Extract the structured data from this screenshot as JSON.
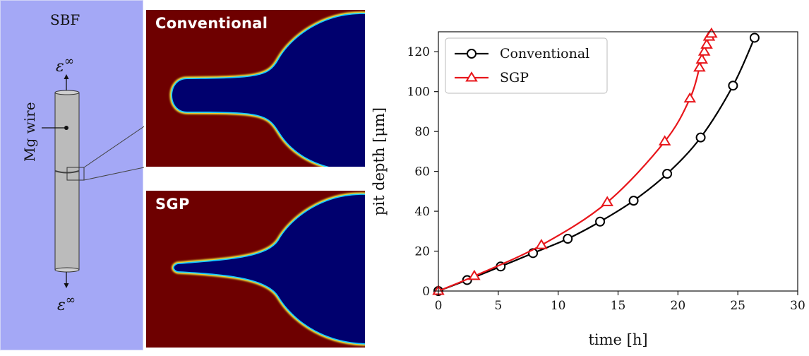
{
  "schematic": {
    "top_label": "SBF",
    "wire_label": "Mg wire",
    "far_field_top": "ε",
    "far_field_top_sup": "∞",
    "far_field_bottom": "ε",
    "far_field_bottom_sup": "∞"
  },
  "simulations": [
    {
      "label": "Conventional"
    },
    {
      "label": "SGP"
    }
  ],
  "colors": {
    "schematic_background": "#a4a8f6",
    "electrolyte": "#6e0000",
    "pit": "#00006e",
    "conventional": "#000000",
    "sgp": "#e8161b"
  },
  "chart_data": {
    "type": "line",
    "xlabel": "time [h]",
    "ylabel": "pit depth [μm]",
    "xlim": [
      0,
      30
    ],
    "ylim": [
      0,
      130
    ],
    "xticks": [
      0,
      5,
      10,
      15,
      20,
      25,
      30
    ],
    "yticks": [
      0,
      20,
      40,
      60,
      80,
      100,
      120
    ],
    "grid": false,
    "legend_position": "top-left",
    "series": [
      {
        "name": "Conventional",
        "color": "#000000",
        "marker": "circle",
        "x": [
          0.0,
          2.4,
          5.2,
          7.9,
          10.8,
          13.5,
          16.3,
          19.1,
          21.9,
          24.6,
          26.4
        ],
        "y": [
          0.0,
          5.5,
          12.3,
          19.0,
          26.2,
          34.8,
          45.3,
          58.8,
          77.0,
          103.0,
          127.0
        ]
      },
      {
        "name": "SGP",
        "color": "#e8161b",
        "marker": "triangle",
        "x": [
          0.0,
          3.0,
          8.6,
          14.1,
          18.9,
          21.0,
          21.8,
          22.0,
          22.2,
          22.4,
          22.6,
          22.8
        ],
        "y": [
          0.0,
          7.5,
          23.0,
          44.5,
          75.0,
          96.5,
          112.0,
          116.0,
          120.0,
          123.5,
          127.5,
          129.0
        ]
      }
    ]
  }
}
